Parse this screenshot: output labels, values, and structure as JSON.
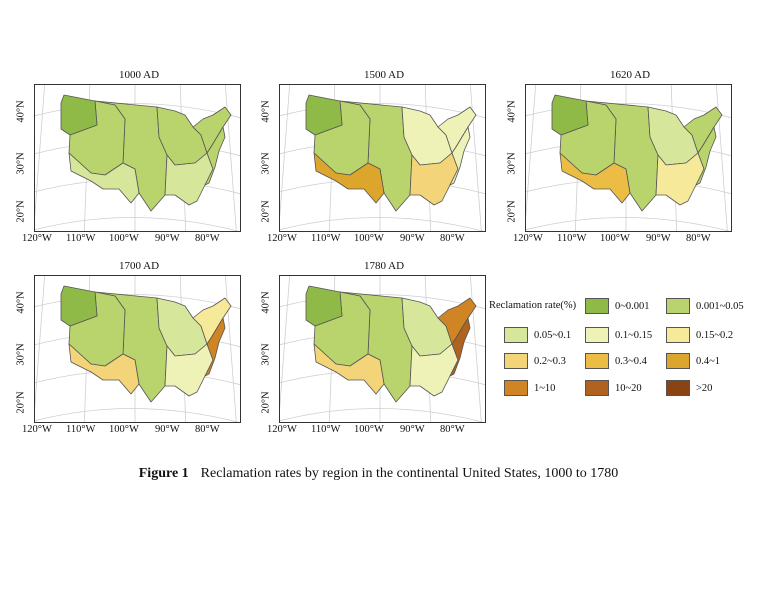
{
  "panels": [
    {
      "title": "1000 AD",
      "regions": {
        "pnw": "0-0.001",
        "west": "0.001-0.05",
        "sw": "0.05-0.1",
        "plains": "0.001-0.05",
        "midwest": "0.001-0.05",
        "se": "0.05-0.1",
        "ne": "0.001-0.05",
        "coast": "0.001-0.05"
      }
    },
    {
      "title": "1500 AD",
      "regions": {
        "pnw": "0-0.001",
        "west": "0.001-0.05",
        "sw": "0.4-1",
        "plains": "0.001-0.05",
        "midwest": "0.1-0.15",
        "se": "0.2-0.3",
        "ne": "0.1-0.15",
        "coast": "0.1-0.15"
      }
    },
    {
      "title": "1620 AD",
      "regions": {
        "pnw": "0-0.001",
        "west": "0.001-0.05",
        "sw": "0.3-0.4",
        "plains": "0.001-0.05",
        "midwest": "0.05-0.1",
        "se": "0.15-0.2",
        "ne": "0.001-0.05",
        "coast": "0.001-0.05"
      }
    },
    {
      "title": "1700 AD",
      "regions": {
        "pnw": "0-0.001",
        "west": "0.001-0.05",
        "sw": "0.2-0.3",
        "plains": "0.001-0.05",
        "midwest": "0.05-0.1",
        "se": "0.1-0.15",
        "ne": "0.15-0.2",
        "coast": "1-10"
      }
    },
    {
      "title": "1780 AD",
      "regions": {
        "pnw": "0-0.001",
        "west": "0.001-0.05",
        "sw": "0.2-0.3",
        "plains": "0.001-0.05",
        "midwest": "0.05-0.1",
        "se": "0.1-0.15",
        "ne": "1-10",
        "coast": "10-20"
      }
    }
  ],
  "axes": {
    "lon_labels": [
      "120°W",
      "110°W",
      "100°W",
      "90°W",
      "80°W"
    ],
    "lat_labels": [
      "40°N",
      "30°N",
      "20°N"
    ]
  },
  "legend": {
    "title": "Reclamation rate(%)",
    "items": [
      {
        "label": "0~0.001",
        "key": "0-0.001",
        "color": "#8fba48"
      },
      {
        "label": "0.001~0.05",
        "key": "0.001-0.05",
        "color": "#b9d46c"
      },
      {
        "label": "0.05~0.1",
        "key": "0.05-0.1",
        "color": "#d6e69a"
      },
      {
        "label": "0.1~0.15",
        "key": "0.1-0.15",
        "color": "#eef2b6"
      },
      {
        "label": "0.15~0.2",
        "key": "0.15-0.2",
        "color": "#f6ea9a"
      },
      {
        "label": "0.2~0.3",
        "key": "0.2-0.3",
        "color": "#f4d478"
      },
      {
        "label": "0.3~0.4",
        "key": "0.3-0.4",
        "color": "#ebbd44"
      },
      {
        "label": "0.4~1",
        "key": "0.4-1",
        "color": "#dca52c"
      },
      {
        "label": "1~10",
        "key": "1-10",
        "color": "#cf8524"
      },
      {
        "label": "10~20",
        "key": "10-20",
        "color": "#b0631f"
      },
      {
        "label": ">20",
        "key": ">20",
        "color": "#8c4314"
      }
    ]
  },
  "caption": {
    "label": "Figure 1",
    "text": "Reclamation rates by region in the continental United States, 1000 to 1780"
  }
}
